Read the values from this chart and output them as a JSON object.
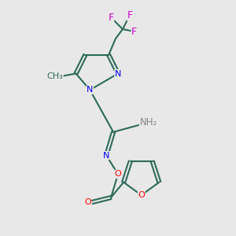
{
  "bg_color": "#e8e8e8",
  "atom_colors": {
    "C": "#2d6b5a",
    "N": "#0000ff",
    "O": "#ff0000",
    "F": "#cc00cc",
    "H": "#888888"
  },
  "bond_color": "#2d6b5a",
  "title": ""
}
